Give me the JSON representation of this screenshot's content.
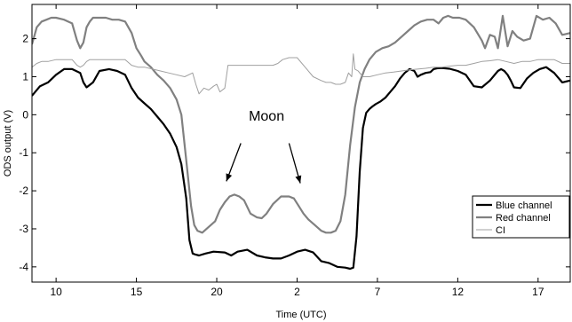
{
  "chart_data": {
    "type": "line",
    "xlabel": "Time (UTC)",
    "ylabel": "ODS output (V)",
    "xlim": [
      0,
      33.5
    ],
    "ylim": [
      -4.4,
      2.9
    ],
    "x_ticks": [
      1.5,
      6.5,
      11.5,
      16.5,
      21.5,
      26.5,
      31.5
    ],
    "x_tick_labels": [
      "10",
      "15",
      "20",
      "2",
      "7",
      "12",
      "17"
    ],
    "y_ticks": [
      -4,
      -3,
      -2,
      -1,
      0,
      1,
      2
    ],
    "y_tick_labels": [
      "-4",
      "-3",
      "-2",
      "-1",
      "0",
      "1",
      "2"
    ],
    "grid": false,
    "legend_position": "bottom-right",
    "series": [
      {
        "name": "Blue channel",
        "color": "#000000",
        "x": [
          0,
          0.5,
          1.0,
          1.5,
          2.0,
          2.5,
          3.0,
          3.2,
          3.4,
          3.8,
          4.2,
          4.8,
          5.3,
          5.8,
          6.2,
          6.6,
          7.0,
          7.4,
          7.8,
          8.2,
          8.6,
          9.0,
          9.3,
          9.6,
          9.8,
          10.0,
          10.2,
          10.4,
          10.8,
          11.3,
          12.0,
          12.4,
          12.8,
          13.4,
          14.0,
          14.5,
          15.0,
          15.5,
          16.0,
          16.5,
          17.0,
          17.5,
          18.0,
          18.5,
          19.0,
          19.5,
          19.8,
          20.0,
          20.2,
          20.4,
          20.6,
          20.8,
          21.0,
          21.2,
          21.4,
          21.7,
          22.0,
          22.3,
          22.6,
          22.9,
          23.2,
          23.5,
          23.8,
          24.0,
          24.2,
          24.5,
          24.8,
          25.0,
          25.2,
          25.5,
          26.0,
          26.5,
          27.0,
          27.5,
          28.0,
          28.5,
          29.0,
          29.2,
          29.4,
          29.6,
          29.8,
          30.0,
          30.4,
          30.8,
          31.2,
          31.6,
          32.0,
          32.5,
          33.0,
          33.5
        ],
        "values": [
          0.5,
          0.75,
          0.85,
          1.05,
          1.2,
          1.2,
          1.1,
          0.85,
          0.72,
          0.85,
          1.15,
          1.2,
          1.15,
          1.05,
          0.7,
          0.45,
          0.3,
          0.15,
          -0.05,
          -0.25,
          -0.5,
          -0.85,
          -1.3,
          -2.2,
          -3.3,
          -3.65,
          -3.68,
          -3.7,
          -3.65,
          -3.6,
          -3.62,
          -3.7,
          -3.6,
          -3.55,
          -3.7,
          -3.75,
          -3.78,
          -3.78,
          -3.7,
          -3.6,
          -3.55,
          -3.62,
          -3.85,
          -3.9,
          -4.0,
          -4.02,
          -4.05,
          -4.02,
          -3.2,
          -1.5,
          -0.35,
          0.05,
          0.15,
          0.22,
          0.28,
          0.35,
          0.45,
          0.6,
          0.75,
          0.95,
          1.1,
          1.2,
          1.15,
          1.0,
          1.05,
          1.1,
          1.12,
          1.2,
          1.22,
          1.23,
          1.21,
          1.15,
          1.05,
          0.75,
          0.72,
          0.9,
          1.15,
          1.2,
          1.15,
          1.05,
          0.9,
          0.72,
          0.7,
          0.95,
          1.1,
          1.2,
          1.25,
          1.1,
          0.85,
          0.9
        ]
      },
      {
        "name": "Red channel",
        "color": "#808080",
        "x": [
          0,
          0.3,
          0.6,
          0.9,
          1.2,
          1.5,
          2.0,
          2.5,
          2.8,
          3.0,
          3.2,
          3.4,
          3.6,
          3.8,
          4.0,
          4.3,
          4.6,
          5.0,
          5.4,
          5.8,
          6.2,
          6.5,
          6.8,
          7.0,
          7.4,
          7.8,
          8.2,
          8.6,
          9.0,
          9.3,
          9.6,
          9.9,
          10.1,
          10.3,
          10.6,
          11.0,
          11.4,
          11.7,
          12.0,
          12.3,
          12.6,
          12.9,
          13.2,
          13.6,
          14.0,
          14.3,
          14.6,
          15.0,
          15.5,
          16.0,
          16.3,
          16.6,
          16.9,
          17.2,
          17.6,
          18.0,
          18.3,
          18.6,
          18.9,
          19.2,
          19.5,
          19.8,
          20.1,
          20.4,
          20.7,
          21.0,
          21.4,
          21.8,
          22.2,
          22.6,
          23.0,
          23.4,
          23.8,
          24.2,
          24.6,
          25.0,
          25.3,
          25.6,
          25.9,
          26.2,
          26.6,
          27.0,
          27.5,
          28.0,
          28.2,
          28.5,
          28.8,
          29.0,
          29.3,
          29.6,
          29.9,
          30.2,
          30.6,
          31.0,
          31.4,
          31.8,
          32.2,
          32.6,
          33.0,
          33.5
        ],
        "values": [
          1.85,
          2.3,
          2.45,
          2.5,
          2.55,
          2.55,
          2.5,
          2.4,
          1.95,
          1.75,
          1.9,
          2.3,
          2.45,
          2.55,
          2.55,
          2.55,
          2.55,
          2.5,
          2.5,
          2.45,
          2.15,
          1.75,
          1.55,
          1.4,
          1.25,
          1.05,
          0.9,
          0.7,
          0.4,
          0.0,
          -1.2,
          -2.4,
          -2.9,
          -3.05,
          -3.1,
          -2.95,
          -2.8,
          -2.5,
          -2.3,
          -2.15,
          -2.1,
          -2.15,
          -2.25,
          -2.6,
          -2.7,
          -2.72,
          -2.6,
          -2.35,
          -2.15,
          -2.15,
          -2.2,
          -2.4,
          -2.6,
          -2.75,
          -2.9,
          -3.05,
          -3.1,
          -3.1,
          -3.05,
          -2.8,
          -2.1,
          -0.8,
          0.2,
          0.85,
          1.2,
          1.45,
          1.65,
          1.75,
          1.8,
          1.9,
          2.05,
          2.2,
          2.35,
          2.45,
          2.5,
          2.5,
          2.4,
          2.55,
          2.6,
          2.55,
          2.55,
          2.5,
          2.3,
          1.95,
          1.75,
          2.1,
          2.05,
          1.75,
          2.6,
          1.8,
          2.2,
          2.05,
          1.95,
          2.0,
          2.6,
          2.5,
          2.55,
          2.4,
          2.1,
          2.15
        ]
      },
      {
        "name": "CI",
        "color": "#a0a0a0",
        "x": [
          0,
          0.3,
          0.6,
          1.0,
          1.5,
          2.0,
          2.5,
          2.8,
          3.0,
          3.2,
          3.4,
          3.6,
          4.0,
          4.5,
          5.0,
          5.5,
          5.8,
          6.2,
          6.6,
          7.0,
          7.5,
          8.0,
          8.5,
          9.0,
          9.5,
          10.0,
          10.2,
          10.4,
          10.7,
          11.0,
          11.3,
          11.5,
          11.7,
          12.0,
          12.2,
          12.4,
          12.7,
          13.0,
          13.5,
          14.0,
          14.5,
          15.0,
          15.3,
          15.6,
          16.0,
          16.5,
          17.0,
          17.5,
          18.0,
          18.3,
          18.6,
          18.9,
          19.2,
          19.5,
          19.7,
          19.9,
          20.0,
          20.1,
          20.3,
          20.6,
          21.0,
          21.5,
          22.0,
          22.5,
          23.0,
          23.5,
          24.0,
          24.5,
          25.0,
          25.5,
          26.0,
          26.5,
          27.0,
          27.5,
          28.0,
          28.5,
          29.0,
          29.5,
          30.0,
          30.5,
          31.0,
          31.5,
          32.0,
          32.5,
          33.0,
          33.5
        ],
        "values": [
          1.25,
          1.35,
          1.4,
          1.4,
          1.45,
          1.45,
          1.45,
          1.3,
          1.25,
          1.3,
          1.4,
          1.45,
          1.45,
          1.45,
          1.45,
          1.45,
          1.45,
          1.3,
          1.25,
          1.25,
          1.2,
          1.15,
          1.1,
          1.05,
          1.0,
          1.1,
          0.8,
          0.55,
          0.7,
          0.65,
          0.75,
          0.8,
          0.6,
          0.7,
          1.3,
          1.3,
          1.3,
          1.3,
          1.3,
          1.3,
          1.3,
          1.3,
          1.35,
          1.45,
          1.5,
          1.5,
          1.25,
          1.0,
          0.9,
          0.85,
          0.85,
          0.8,
          0.8,
          0.85,
          1.1,
          1.0,
          1.6,
          1.2,
          1.15,
          1.0,
          1.0,
          1.05,
          1.1,
          1.12,
          1.15,
          1.18,
          1.2,
          1.22,
          1.25,
          1.25,
          1.28,
          1.3,
          1.3,
          1.35,
          1.4,
          1.42,
          1.45,
          1.4,
          1.35,
          1.4,
          1.4,
          1.45,
          1.45,
          1.45,
          1.35,
          1.35
        ]
      }
    ],
    "annotations": [
      {
        "text": "Moon",
        "x": 14.6,
        "y": -0.15
      },
      {
        "type": "arrow",
        "x_from": 13.0,
        "y_from": -0.75,
        "x_to": 12.1,
        "y_to": -1.75
      },
      {
        "type": "arrow",
        "x_from": 16.0,
        "y_from": -0.75,
        "x_to": 16.7,
        "y_to": -1.8
      }
    ]
  }
}
